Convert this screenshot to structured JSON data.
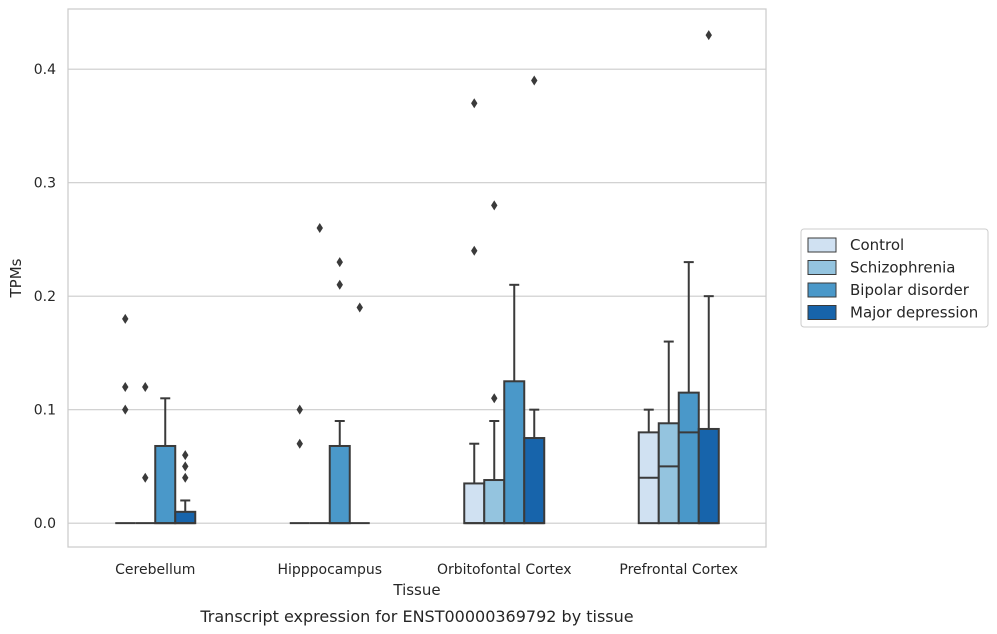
{
  "chart_data": {
    "type": "boxplot",
    "title": "",
    "caption": "Transcript expression for ENST00000369792 by tissue",
    "xlabel": "Tissue",
    "ylabel": "TPMs",
    "ylim": [
      -0.021,
      0.453
    ],
    "yticks": [
      0.0,
      0.1,
      0.2,
      0.3,
      0.4
    ],
    "ytick_labels": [
      "0.0",
      "0.1",
      "0.2",
      "0.3",
      "0.4"
    ],
    "grid": "horizontal",
    "legend_position": "right",
    "categories": [
      "Cerebellum",
      "Hipppocampus",
      "Orbitofontal Cortex",
      "Prefrontal Cortex"
    ],
    "series": [
      {
        "name": "Control",
        "color": "#d0e1f2",
        "boxes": [
          {
            "q1": 0,
            "median": 0,
            "q3": 0,
            "whisker_low": 0,
            "whisker_high": 0,
            "outliers": [
              0.18,
              0.12,
              0.1
            ]
          },
          {
            "q1": 0,
            "median": 0,
            "q3": 0,
            "whisker_low": 0,
            "whisker_high": 0,
            "outliers": [
              0.1,
              0.07
            ]
          },
          {
            "q1": 0,
            "median": 0,
            "q3": 0.035,
            "whisker_low": 0,
            "whisker_high": 0.07,
            "outliers": [
              0.37,
              0.24
            ]
          },
          {
            "q1": 0,
            "median": 0.04,
            "q3": 0.08,
            "whisker_low": 0,
            "whisker_high": 0.1,
            "outliers": []
          }
        ]
      },
      {
        "name": "Schizophrenia",
        "color": "#94c4df",
        "boxes": [
          {
            "q1": 0,
            "median": 0,
            "q3": 0,
            "whisker_low": 0,
            "whisker_high": 0,
            "outliers": [
              0.12,
              0.04
            ]
          },
          {
            "q1": 0,
            "median": 0,
            "q3": 0,
            "whisker_low": 0,
            "whisker_high": 0,
            "outliers": [
              0.26
            ]
          },
          {
            "q1": 0,
            "median": 0,
            "q3": 0.038,
            "whisker_low": 0,
            "whisker_high": 0.09,
            "outliers": [
              0.28,
              0.11
            ]
          },
          {
            "q1": 0,
            "median": 0.05,
            "q3": 0.088,
            "whisker_low": 0,
            "whisker_high": 0.16,
            "outliers": []
          }
        ]
      },
      {
        "name": "Bipolar disorder",
        "color": "#4a98c9",
        "boxes": [
          {
            "q1": 0,
            "median": 0,
            "q3": 0.068,
            "whisker_low": 0,
            "whisker_high": 0.11,
            "outliers": []
          },
          {
            "q1": 0,
            "median": 0,
            "q3": 0.068,
            "whisker_low": 0,
            "whisker_high": 0.09,
            "outliers": [
              0.23,
              0.21
            ]
          },
          {
            "q1": 0,
            "median": 0,
            "q3": 0.125,
            "whisker_low": 0,
            "whisker_high": 0.21,
            "outliers": []
          },
          {
            "q1": 0,
            "median": 0.08,
            "q3": 0.115,
            "whisker_low": 0,
            "whisker_high": 0.23,
            "outliers": []
          }
        ]
      },
      {
        "name": "Major depression",
        "color": "#1764ab",
        "boxes": [
          {
            "q1": 0,
            "median": 0,
            "q3": 0.01,
            "whisker_low": 0,
            "whisker_high": 0.02,
            "outliers": [
              0.06,
              0.05,
              0.04
            ]
          },
          {
            "q1": 0,
            "median": 0,
            "q3": 0,
            "whisker_low": 0,
            "whisker_high": 0,
            "outliers": [
              0.19
            ]
          },
          {
            "q1": 0,
            "median": 0,
            "q3": 0.075,
            "whisker_low": 0,
            "whisker_high": 0.1,
            "outliers": [
              0.39
            ]
          },
          {
            "q1": 0,
            "median": 0,
            "q3": 0.083,
            "whisker_low": 0,
            "whisker_high": 0.2,
            "outliers": [
              0.43
            ]
          }
        ]
      }
    ]
  }
}
